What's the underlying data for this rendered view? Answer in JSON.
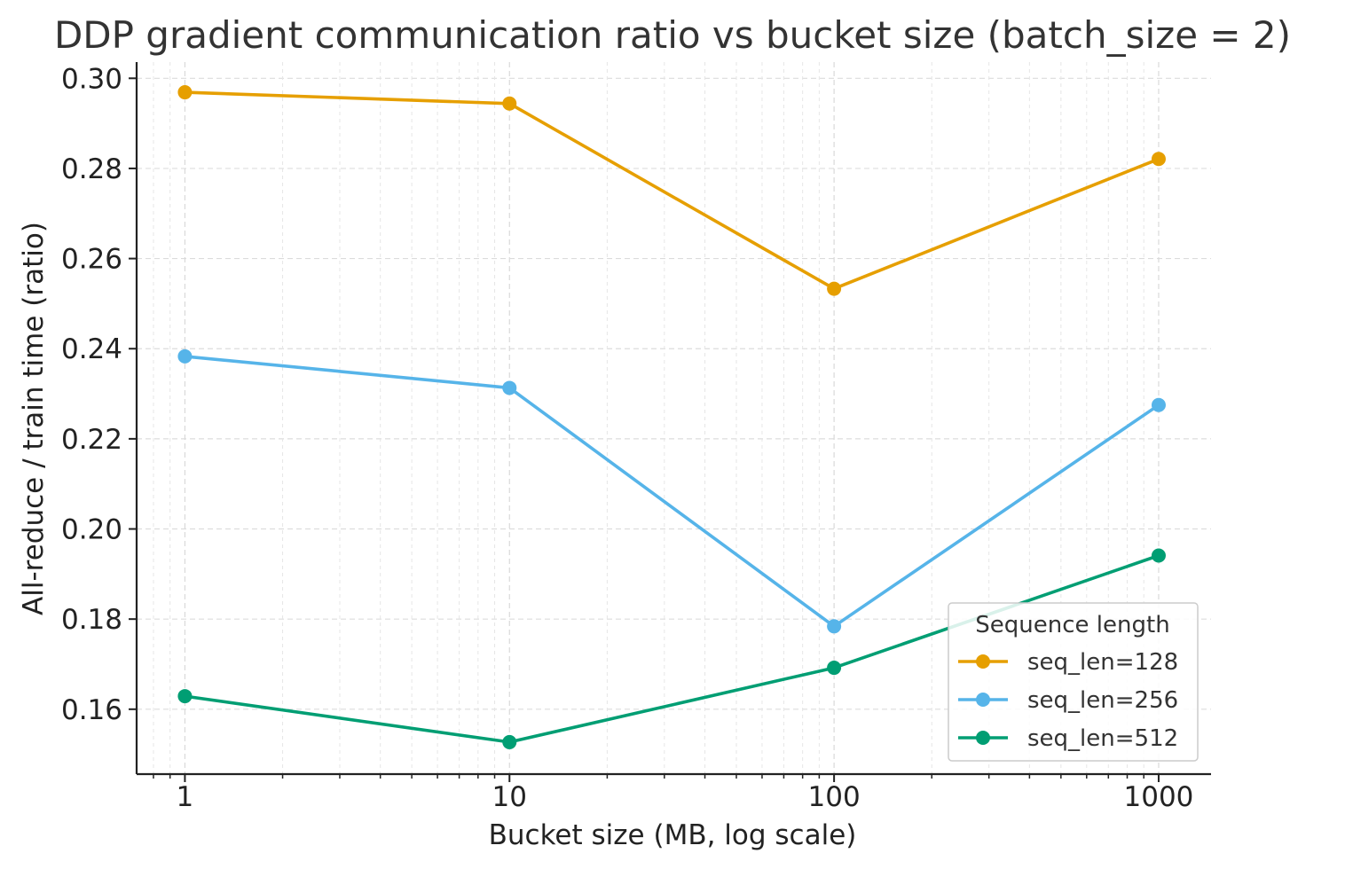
{
  "chart_data": {
    "type": "line",
    "title": "DDP gradient communication ratio vs bucket size (batch_size = 2)",
    "xlabel": "Bucket size (MB, log scale)",
    "ylabel": "All-reduce / train time (ratio)",
    "x_scale": "log",
    "x": [
      1,
      10,
      100,
      1000
    ],
    "x_tick_labels": [
      "1",
      "10",
      "100",
      "1000"
    ],
    "xlim": [
      0.71,
      1450
    ],
    "ylim": [
      0.1456,
      0.3036
    ],
    "y_ticks": [
      0.16,
      0.18,
      0.2,
      0.22,
      0.24,
      0.26,
      0.28,
      0.3
    ],
    "y_tick_labels": [
      "0.16",
      "0.18",
      "0.20",
      "0.22",
      "0.24",
      "0.26",
      "0.28",
      "0.30"
    ],
    "grid": true,
    "legend": {
      "title": "Sequence length",
      "placement": "lower-right"
    },
    "series": [
      {
        "name": "seq_len=128",
        "color": "#E69F00",
        "values": [
          0.2969,
          0.2944,
          0.2533,
          0.2821
        ]
      },
      {
        "name": "seq_len=256",
        "color": "#56B4E9",
        "values": [
          0.2383,
          0.2313,
          0.1784,
          0.2275
        ]
      },
      {
        "name": "seq_len=512",
        "color": "#009E73",
        "values": [
          0.1629,
          0.1527,
          0.1692,
          0.1941
        ]
      }
    ]
  }
}
